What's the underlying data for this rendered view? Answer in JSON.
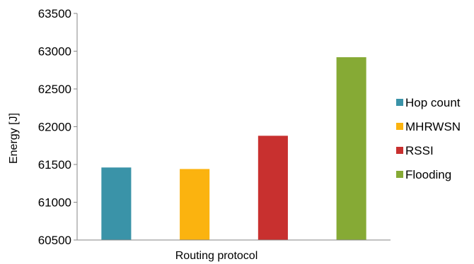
{
  "chart_data": {
    "type": "bar",
    "categories": [
      "Hop count",
      "MHRWSN",
      "RSSI",
      "Flooding"
    ],
    "values": [
      61460,
      61440,
      61880,
      62920
    ],
    "colors": [
      "#3a93a8",
      "#fbb30f",
      "#c8302f",
      "#86aa35"
    ],
    "xlabel": "Routing protocol",
    "ylabel": "Energy [J]",
    "ylim": [
      60500,
      63500
    ],
    "yticks": [
      60500,
      61000,
      61500,
      62000,
      62500,
      63000,
      63500
    ],
    "ytick_labels": [
      "60500",
      "61000",
      "61500",
      "62000",
      "62500",
      "63000",
      "63500"
    ],
    "grid": false,
    "legend_position": "right"
  }
}
